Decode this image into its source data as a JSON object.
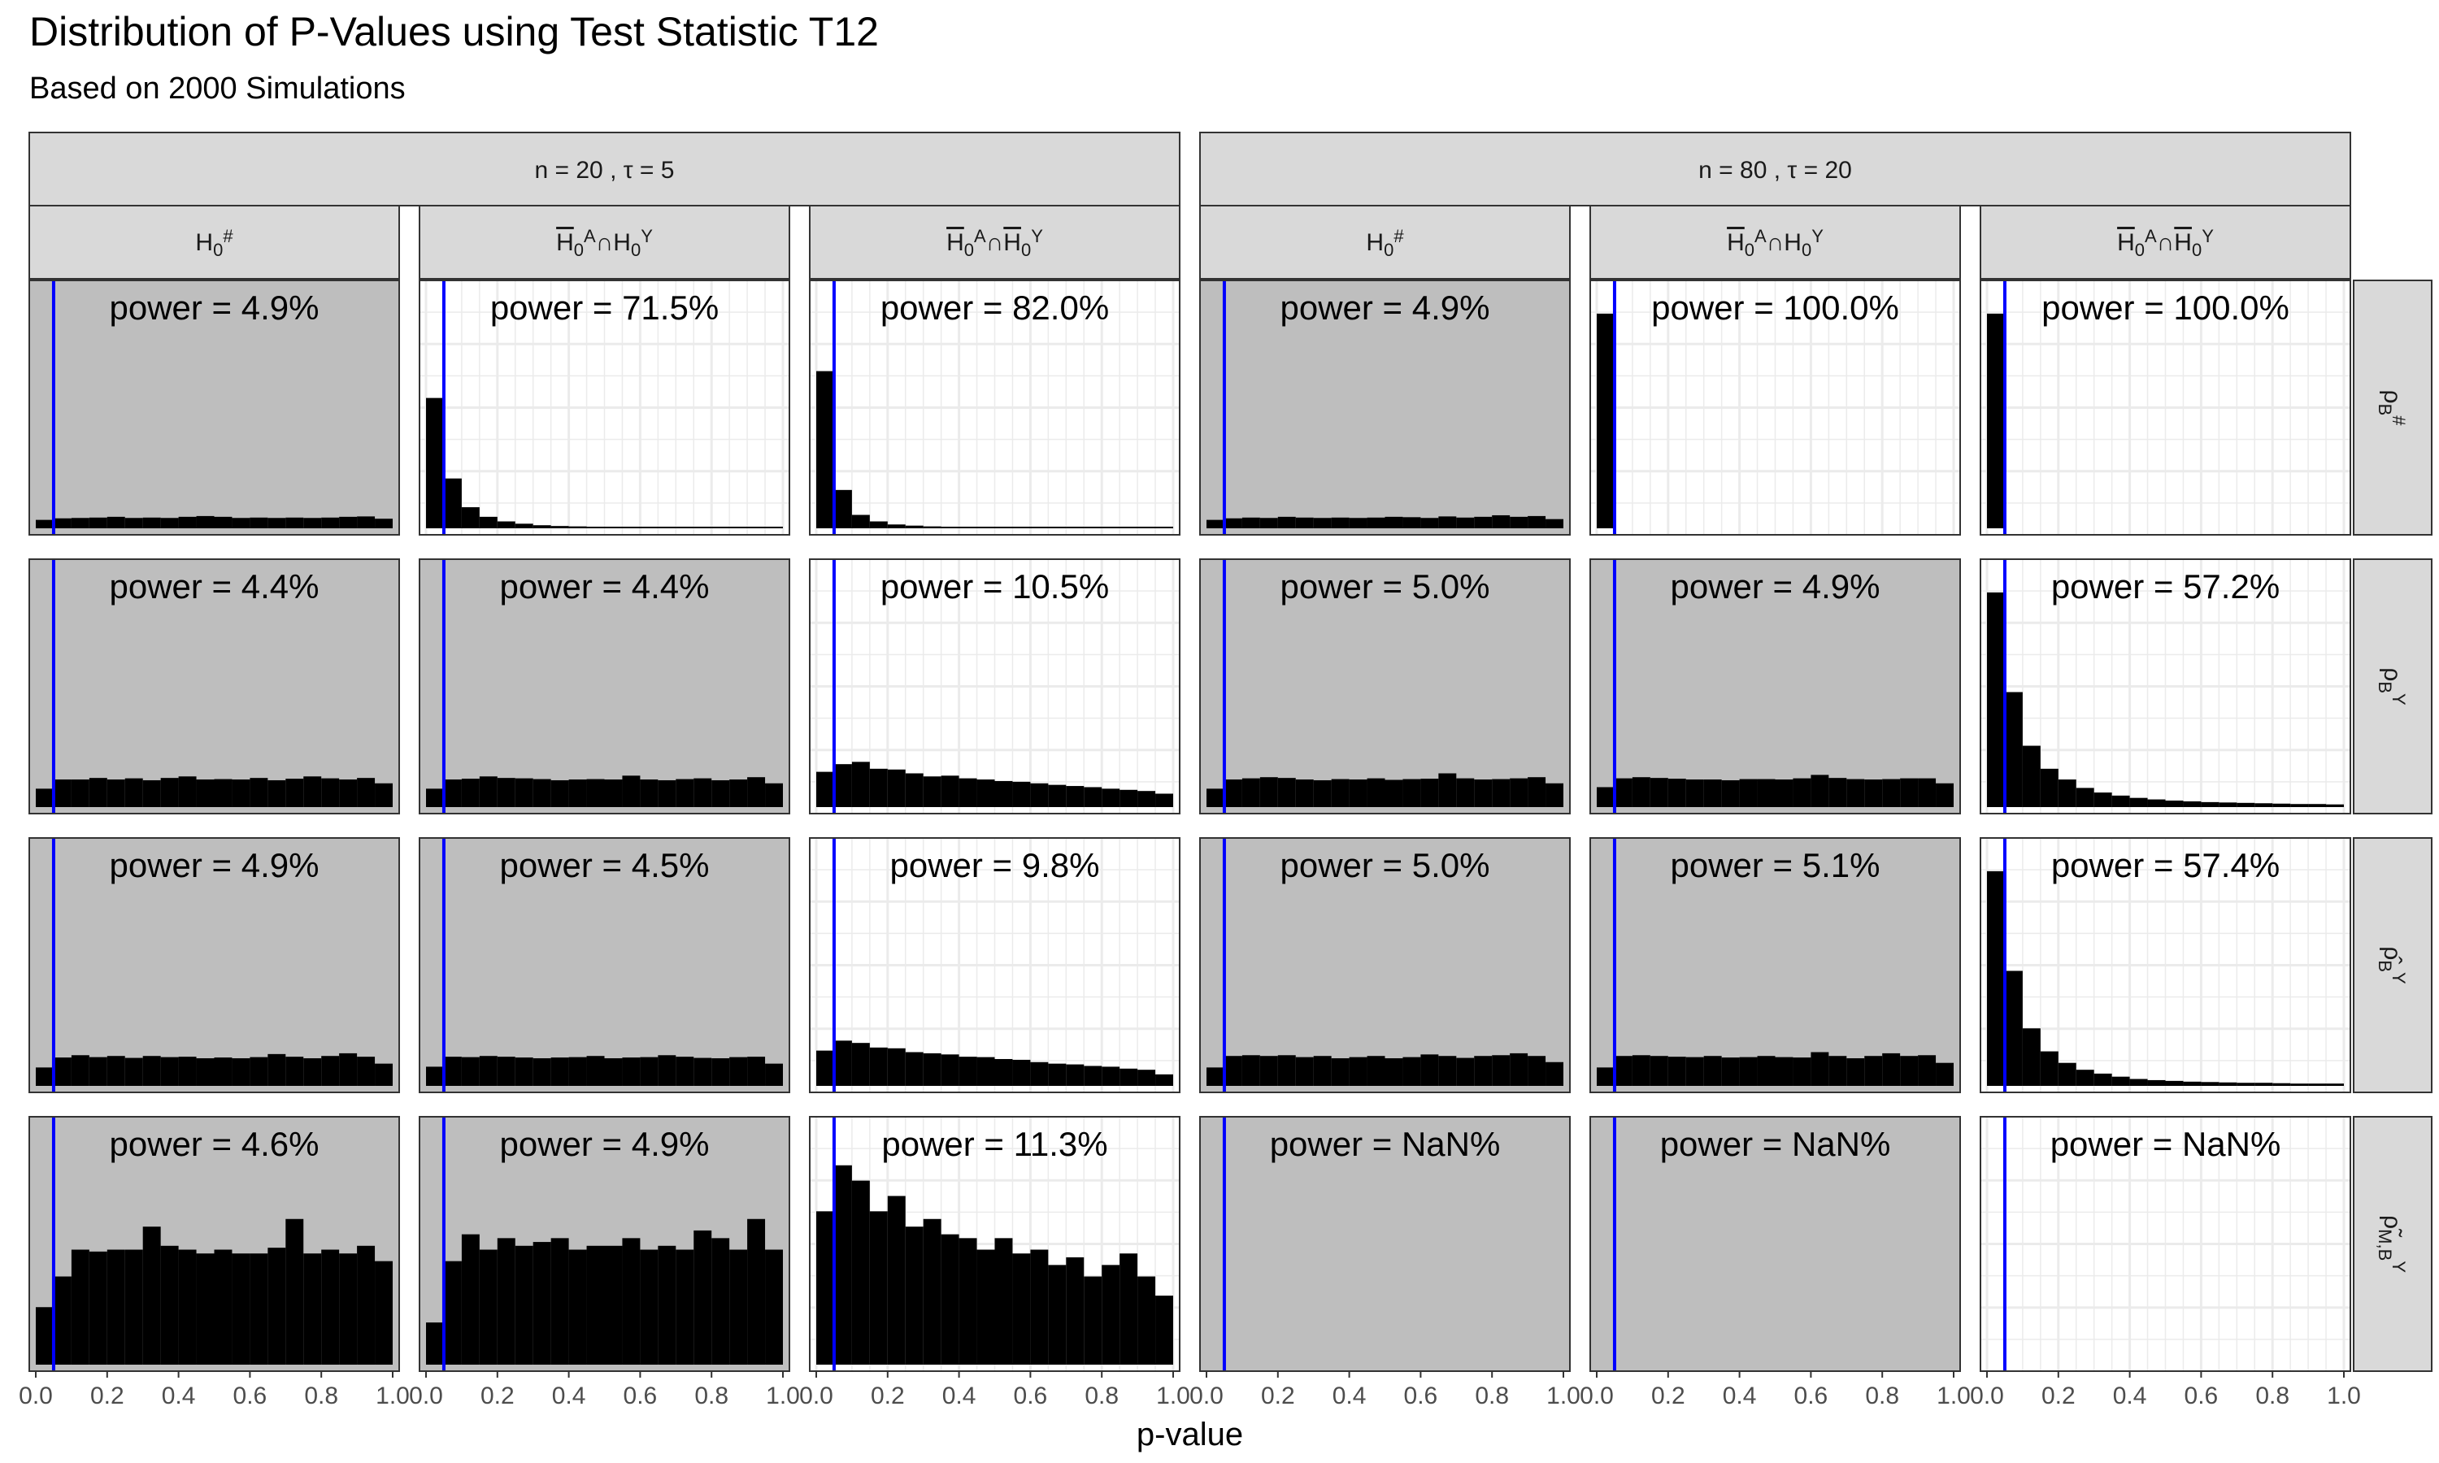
{
  "title": "Distribution of P-Values using Test Statistic T12",
  "subtitle": "Based on 2000 Simulations",
  "colors": {
    "null_panel_bg": "#bebebe",
    "alt_panel_bg": "#ffffff",
    "strip_bg": "#d9d9d9",
    "bars": "#000000",
    "vline": "#0000ff",
    "grid": "#ebebeb"
  },
  "chart_data": {
    "type": "bar",
    "xlabel": "p-value",
    "ylabel": "",
    "x_ticks": [
      "0.0",
      "0.2",
      "0.4",
      "0.6",
      "0.8",
      "1.0"
    ],
    "xlim": [
      0,
      1
    ],
    "vline_x": 0.05,
    "bins": 20,
    "outer_groups": [
      "n = 20 , τ = 5",
      "n = 80 , τ = 20"
    ],
    "columns": [
      "H0#",
      "H̄0A∩H0Y",
      "H̄0A∩H̄0Y"
    ],
    "rows": [
      "ρB#",
      "ρBY",
      "ρ̂BY",
      "ρ̃M,BY"
    ],
    "panels": [
      {
        "group": 0,
        "col": 0,
        "row": 0,
        "power": "power = 4.9%",
        "null": true,
        "ymax": 600,
        "values": [
          22,
          26,
          27,
          28,
          30,
          27,
          28,
          27,
          30,
          32,
          30,
          27,
          28,
          27,
          28,
          27,
          28,
          30,
          31,
          25
        ]
      },
      {
        "group": 0,
        "col": 1,
        "row": 0,
        "power": "power = 71.5%",
        "null": false,
        "ymax": 600,
        "values": [
          340,
          130,
          55,
          30,
          18,
          12,
          8,
          6,
          5,
          4,
          3,
          3,
          2,
          2,
          2,
          2,
          1,
          1,
          1,
          1
        ]
      },
      {
        "group": 0,
        "col": 2,
        "row": 0,
        "power": "power = 82.0%",
        "null": false,
        "ymax": 600,
        "values": [
          410,
          100,
          35,
          18,
          10,
          7,
          5,
          4,
          3,
          3,
          2,
          2,
          2,
          2,
          1,
          1,
          1,
          1,
          1,
          1
        ]
      },
      {
        "group": 1,
        "col": 0,
        "row": 0,
        "power": "power = 4.9%",
        "null": true,
        "ymax": 600,
        "values": [
          22,
          26,
          28,
          27,
          30,
          28,
          27,
          28,
          27,
          28,
          30,
          29,
          27,
          31,
          28,
          30,
          34,
          30,
          32,
          24
        ]
      },
      {
        "group": 1,
        "col": 1,
        "row": 0,
        "power": "power = 100.0%",
        "null": false,
        "ymax": 600,
        "values": [
          560,
          0,
          0,
          0,
          0,
          0,
          0,
          0,
          0,
          0,
          0,
          0,
          0,
          0,
          0,
          0,
          0,
          0,
          0,
          0
        ]
      },
      {
        "group": 1,
        "col": 2,
        "row": 0,
        "power": "power = 100.0%",
        "null": false,
        "ymax": 600,
        "values": [
          560,
          0,
          0,
          0,
          0,
          0,
          0,
          0,
          0,
          0,
          0,
          0,
          0,
          0,
          0,
          0,
          0,
          0,
          0,
          0
        ]
      },
      {
        "group": 0,
        "col": 0,
        "row": 1,
        "power": "power = 4.4%",
        "null": true,
        "ymax": 600,
        "values": [
          48,
          72,
          72,
          76,
          72,
          75,
          70,
          76,
          80,
          72,
          73,
          72,
          76,
          70,
          74,
          80,
          75,
          72,
          76,
          62
        ]
      },
      {
        "group": 0,
        "col": 1,
        "row": 1,
        "power": "power = 4.4%",
        "null": true,
        "ymax": 600,
        "values": [
          48,
          72,
          74,
          80,
          76,
          75,
          73,
          70,
          72,
          73,
          72,
          82,
          72,
          70,
          73,
          75,
          70,
          72,
          78,
          62
        ]
      },
      {
        "group": 0,
        "col": 2,
        "row": 1,
        "power": "power = 10.5%",
        "null": false,
        "ymax": 600,
        "values": [
          92,
          112,
          118,
          100,
          98,
          88,
          80,
          82,
          75,
          72,
          68,
          66,
          62,
          58,
          55,
          52,
          48,
          45,
          42,
          35
        ]
      },
      {
        "group": 1,
        "col": 0,
        "row": 1,
        "power": "power = 5.0%",
        "null": true,
        "ymax": 600,
        "values": [
          48,
          72,
          75,
          78,
          76,
          72,
          70,
          73,
          72,
          75,
          71,
          73,
          74,
          88,
          75,
          72,
          73,
          75,
          78,
          62
        ]
      },
      {
        "group": 1,
        "col": 1,
        "row": 1,
        "power": "power = 4.9%",
        "null": true,
        "ymax": 600,
        "values": [
          52,
          75,
          78,
          76,
          74,
          72,
          72,
          70,
          73,
          73,
          72,
          75,
          84,
          76,
          73,
          72,
          73,
          75,
          75,
          62
        ]
      },
      {
        "group": 1,
        "col": 2,
        "row": 1,
        "power": "power = 57.2%",
        "null": false,
        "ymax": 600,
        "values": [
          560,
          300,
          160,
          100,
          72,
          50,
          38,
          30,
          24,
          20,
          17,
          15,
          13,
          12,
          11,
          10,
          9,
          8,
          8,
          7
        ]
      },
      {
        "group": 0,
        "col": 0,
        "row": 2,
        "power": "power = 4.9%",
        "null": true,
        "ymax": 600,
        "values": [
          48,
          74,
          80,
          75,
          78,
          73,
          78,
          75,
          76,
          72,
          74,
          72,
          75,
          83,
          76,
          72,
          78,
          85,
          76,
          58
        ]
      },
      {
        "group": 0,
        "col": 1,
        "row": 2,
        "power": "power = 4.5%",
        "null": true,
        "ymax": 600,
        "values": [
          50,
          76,
          75,
          78,
          76,
          74,
          72,
          74,
          75,
          78,
          72,
          74,
          75,
          80,
          76,
          73,
          72,
          75,
          76,
          58
        ]
      },
      {
        "group": 0,
        "col": 2,
        "row": 2,
        "power": "power = 9.8%",
        "null": false,
        "ymax": 600,
        "values": [
          92,
          118,
          112,
          100,
          98,
          88,
          85,
          82,
          76,
          75,
          70,
          68,
          62,
          58,
          56,
          52,
          50,
          45,
          42,
          30
        ]
      },
      {
        "group": 1,
        "col": 0,
        "row": 2,
        "power": "power = 5.0%",
        "null": true,
        "ymax": 600,
        "values": [
          48,
          78,
          80,
          78,
          80,
          75,
          78,
          72,
          75,
          78,
          72,
          75,
          82,
          78,
          73,
          78,
          80,
          85,
          78,
          62
        ]
      },
      {
        "group": 1,
        "col": 1,
        "row": 2,
        "power": "power = 5.1%",
        "null": true,
        "ymax": 600,
        "values": [
          48,
          78,
          80,
          78,
          76,
          75,
          78,
          74,
          75,
          78,
          75,
          74,
          88,
          78,
          72,
          78,
          85,
          78,
          80,
          60
        ]
      },
      {
        "group": 1,
        "col": 2,
        "row": 2,
        "power": "power = 57.4%",
        "null": false,
        "ymax": 600,
        "values": [
          560,
          300,
          150,
          90,
          60,
          42,
          32,
          24,
          18,
          15,
          13,
          11,
          10,
          9,
          8,
          8,
          7,
          6,
          6,
          6
        ]
      },
      {
        "group": 0,
        "col": 0,
        "row": 3,
        "power": "power = 4.6%",
        "null": true,
        "ymax": 600,
        "values": [
          150,
          230,
          300,
          295,
          300,
          300,
          360,
          310,
          300,
          290,
          300,
          290,
          290,
          305,
          380,
          290,
          300,
          290,
          310,
          270
        ]
      },
      {
        "group": 0,
        "col": 1,
        "row": 3,
        "power": "power = 4.9%",
        "null": true,
        "ymax": 600,
        "values": [
          110,
          270,
          340,
          300,
          330,
          310,
          320,
          330,
          300,
          310,
          310,
          330,
          300,
          310,
          300,
          350,
          330,
          300,
          380,
          300
        ]
      },
      {
        "group": 0,
        "col": 2,
        "row": 3,
        "power": "power = 11.3%",
        "null": false,
        "ymax": 600,
        "values": [
          400,
          520,
          480,
          400,
          440,
          360,
          380,
          340,
          330,
          300,
          330,
          290,
          300,
          260,
          280,
          230,
          260,
          290,
          230,
          180
        ]
      },
      {
        "group": 1,
        "col": 0,
        "row": 3,
        "power": "power = NaN%",
        "null": true,
        "ymax": 600,
        "values": []
      },
      {
        "group": 1,
        "col": 1,
        "row": 3,
        "power": "power = NaN%",
        "null": true,
        "ymax": 600,
        "values": []
      },
      {
        "group": 1,
        "col": 2,
        "row": 3,
        "power": "power = NaN%",
        "null": false,
        "ymax": 600,
        "values": []
      }
    ]
  }
}
